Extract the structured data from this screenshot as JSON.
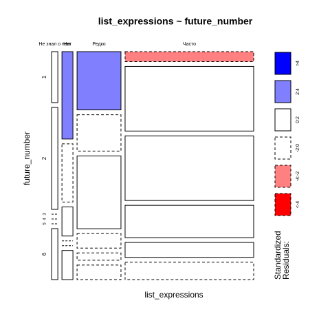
{
  "chart_data": {
    "type": "mosaic",
    "title": "list_expressions ~ future_number",
    "x_label": "list_expressions",
    "y_label": "future_number",
    "columns": [
      "Не знал о нем",
      "Нет",
      "Редко",
      "Часто"
    ],
    "rows": [
      "1",
      "2",
      "3",
      "4",
      "5",
      "6"
    ],
    "counts": [
      [
        1,
        2,
        0,
        0,
        0,
        1
      ],
      [
        3,
        2,
        1,
        0,
        0,
        1
      ],
      [
        8,
        5,
        10,
        2,
        1,
        2
      ],
      [
        4,
        26,
        26,
        13,
        6,
        7
      ]
    ],
    "residuals": [
      [
        0.5,
        0.3,
        -0.5,
        -0.5,
        -0.5,
        1
      ],
      [
        3,
        -0.8,
        0.8,
        -0.6,
        -0.5,
        0.5
      ],
      [
        2.5,
        -1,
        0.5,
        -0.5,
        -0.3,
        -0.8
      ],
      [
        -2.5,
        0.8,
        0.5,
        0.6,
        0.3,
        -0.2
      ]
    ],
    "shading": {
      "title": [
        "Standardized",
        "Residuals:"
      ],
      "labels": [
        ">4",
        "2:4",
        "0:2",
        "-2:0",
        "-4:-2",
        "<-4"
      ],
      "colors": [
        "#0000ff",
        "#8080ff",
        "#ffffff",
        "#ffffff",
        "#ff8080",
        "#ff0000"
      ],
      "breaks": [
        4,
        2,
        0,
        -2,
        -4
      ]
    }
  }
}
